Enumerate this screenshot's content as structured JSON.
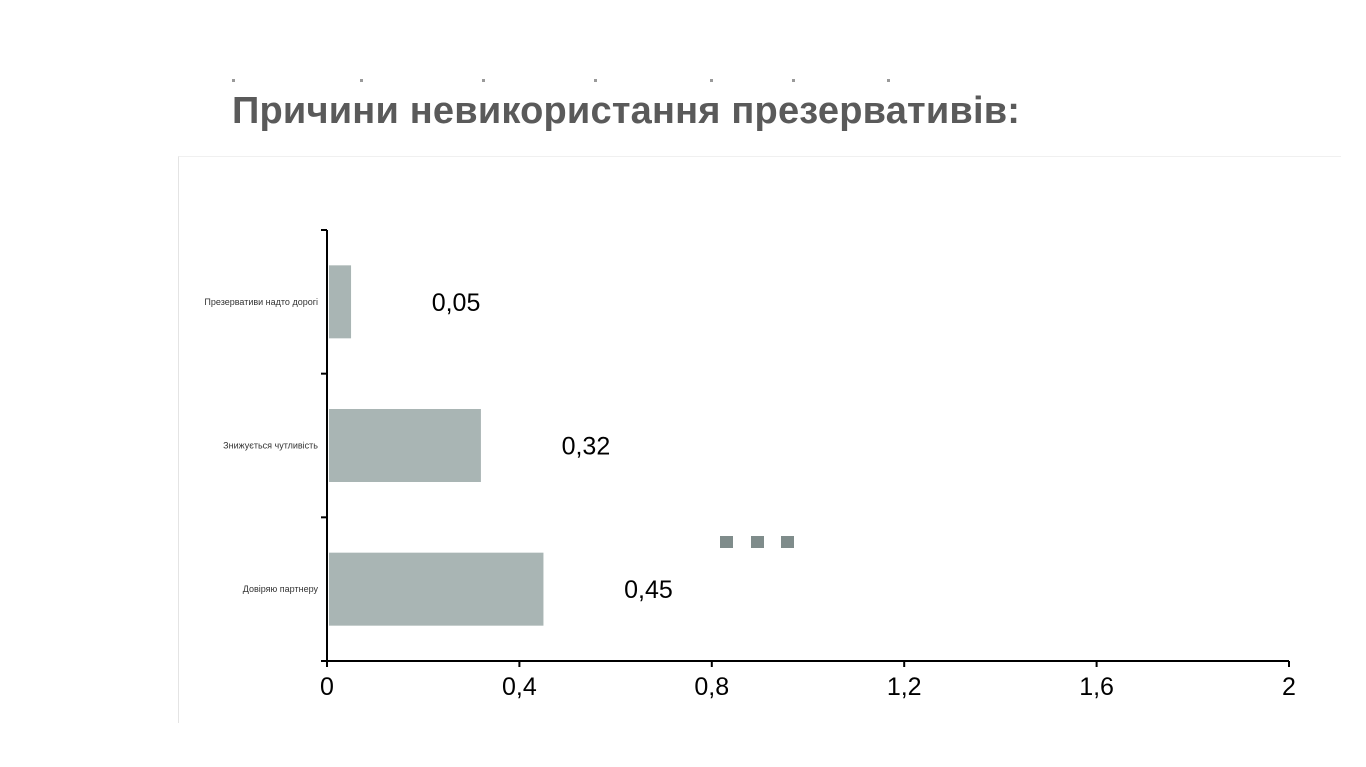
{
  "title": "Причини невикористання презервативів:",
  "colors": {
    "bar": "#a9b5b4",
    "axis": "#000000",
    "marker": "#7f8c8b",
    "title": "#5a5a5a"
  },
  "chart_data": {
    "type": "bar",
    "orientation": "horizontal",
    "title": "",
    "xlabel": "",
    "ylabel": "",
    "categories": [
      "Презервативи надто дорогі",
      "Знижується чутливість",
      "Довіряю партнеру"
    ],
    "values": [
      0.05,
      0.32,
      0.45
    ],
    "value_labels": [
      "0,05",
      "0,32",
      "0,45"
    ],
    "xlim": [
      0,
      2
    ],
    "x_ticks": [
      0,
      0.4,
      0.8,
      1.2,
      1.6,
      2
    ],
    "x_tick_labels": [
      "0",
      "0,4",
      "0,8",
      "1,2",
      "1,6",
      "2"
    ],
    "grid": false,
    "legend": "none"
  }
}
